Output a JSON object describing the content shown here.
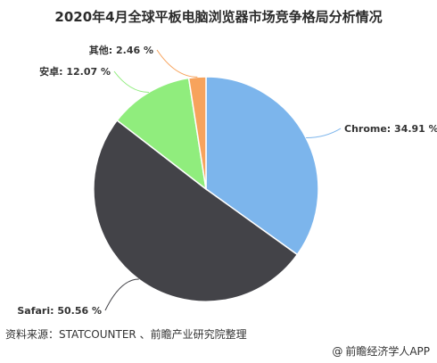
{
  "chart_data": {
    "type": "pie",
    "title": "2020年4月全球平板电脑浏览器市场竞争格局分析情况",
    "slices": [
      {
        "label": "Chrome",
        "value": 34.91,
        "display": "Chrome: 34.91 %",
        "color": "#7cb5ec"
      },
      {
        "label": "Safari",
        "value": 50.56,
        "display": "Safari: 50.56 %",
        "color": "#434348"
      },
      {
        "label": "安卓",
        "value": 12.07,
        "display": "安卓: 12.07 %",
        "color": "#90ed7d"
      },
      {
        "label": "其他",
        "value": 2.46,
        "display": "其他: 2.46 %",
        "color": "#f7a35c"
      }
    ]
  },
  "footer": {
    "source": "资料来源：STATCOUNTER 、前瞻产业研究院整理",
    "credit": "前瞻经济学人APP",
    "credit_icon": "at-icon"
  }
}
